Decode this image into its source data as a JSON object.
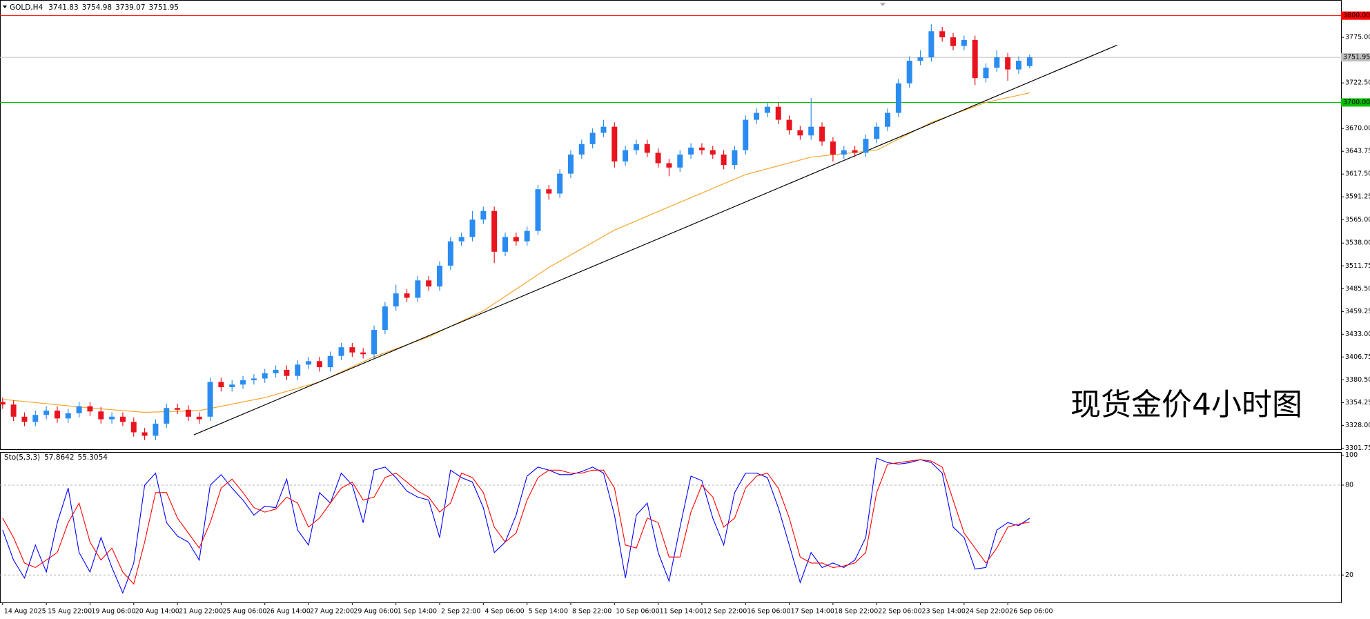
{
  "chart_data": {
    "type": "candlestick",
    "symbol": "GOLD,H4",
    "up_color": "#2a8cf0",
    "down_color": "#e8141e",
    "open": [
      3355,
      3352,
      3338,
      3332,
      3340,
      3345,
      3336,
      3342,
      3350,
      3344,
      3335,
      3338,
      3332,
      3320,
      3316,
      3330,
      3348,
      3346,
      3338,
      3338,
      3378,
      3372,
      3375,
      3380,
      3382,
      3388,
      3392,
      3385,
      3398,
      3402,
      3395,
      3408,
      3418,
      3412,
      3410,
      3438,
      3465,
      3480,
      3475,
      3495,
      3488,
      3512,
      3540,
      3545,
      3565,
      3575,
      3528,
      3545,
      3540,
      3552,
      3600,
      3595,
      3618,
      3640,
      3652,
      3665,
      3672,
      3632,
      3645,
      3652,
      3642,
      3630,
      3625,
      3640,
      3648,
      3645,
      3640,
      3628,
      3645,
      3680,
      3688,
      3695,
      3680,
      3668,
      3662,
      3672,
      3655,
      3640,
      3645,
      3642,
      3658,
      3672,
      3688,
      3722,
      3748,
      3752,
      3782,
      3775,
      3765,
      3772,
      3728,
      3740,
      3752,
      3738,
      3741.83
    ],
    "high": [
      3360,
      3357,
      3343,
      3345,
      3350,
      3350,
      3347,
      3355,
      3355,
      3349,
      3343,
      3343,
      3337,
      3325,
      3335,
      3353,
      3353,
      3351,
      3343,
      3383,
      3383,
      3380,
      3385,
      3387,
      3393,
      3397,
      3397,
      3403,
      3407,
      3407,
      3413,
      3423,
      3423,
      3417,
      3443,
      3470,
      3490,
      3485,
      3500,
      3500,
      3517,
      3545,
      3550,
      3575,
      3580,
      3580,
      3550,
      3550,
      3557,
      3605,
      3605,
      3623,
      3645,
      3657,
      3670,
      3680,
      3677,
      3650,
      3657,
      3657,
      3647,
      3635,
      3645,
      3653,
      3653,
      3650,
      3645,
      3650,
      3685,
      3693,
      3700,
      3700,
      3685,
      3673,
      3705,
      3677,
      3660,
      3650,
      3650,
      3663,
      3677,
      3693,
      3727,
      3753,
      3760,
      3790,
      3787,
      3780,
      3777,
      3777,
      3745,
      3760,
      3757,
      3753,
      3754.98
    ],
    "low": [
      3347,
      3333,
      3327,
      3327,
      3335,
      3331,
      3331,
      3337,
      3339,
      3330,
      3330,
      3327,
      3315,
      3311,
      3311,
      3325,
      3341,
      3333,
      3330,
      3333,
      3367,
      3367,
      3370,
      3375,
      3377,
      3383,
      3380,
      3380,
      3393,
      3390,
      3390,
      3403,
      3407,
      3405,
      3405,
      3433,
      3460,
      3470,
      3470,
      3483,
      3483,
      3507,
      3535,
      3540,
      3560,
      3515,
      3523,
      3535,
      3535,
      3547,
      3588,
      3590,
      3613,
      3635,
      3647,
      3660,
      3625,
      3627,
      3640,
      3637,
      3625,
      3615,
      3620,
      3635,
      3640,
      3635,
      3623,
      3623,
      3640,
      3675,
      3683,
      3675,
      3663,
      3657,
      3657,
      3650,
      3632,
      3635,
      3637,
      3637,
      3653,
      3667,
      3683,
      3717,
      3743,
      3747,
      3770,
      3760,
      3760,
      3720,
      3723,
      3735,
      3725,
      3733,
      3739.07
    ],
    "close": [
      3352,
      3338,
      3332,
      3340,
      3345,
      3336,
      3342,
      3350,
      3344,
      3335,
      3338,
      3332,
      3320,
      3316,
      3330,
      3348,
      3346,
      3338,
      3335,
      3378,
      3372,
      3375,
      3380,
      3382,
      3388,
      3392,
      3385,
      3398,
      3402,
      3395,
      3408,
      3418,
      3412,
      3410,
      3438,
      3465,
      3480,
      3475,
      3495,
      3488,
      3512,
      3540,
      3545,
      3565,
      3575,
      3528,
      3545,
      3540,
      3552,
      3600,
      3595,
      3618,
      3640,
      3652,
      3665,
      3672,
      3632,
      3645,
      3652,
      3642,
      3630,
      3625,
      3640,
      3648,
      3645,
      3640,
      3628,
      3645,
      3680,
      3688,
      3695,
      3680,
      3668,
      3662,
      3672,
      3655,
      3640,
      3645,
      3642,
      3658,
      3672,
      3688,
      3722,
      3748,
      3752,
      3782,
      3775,
      3765,
      3772,
      3728,
      3740,
      3752,
      3738,
      3748,
      3751.95
    ],
    "xlim": [
      -0.24,
      122.5
    ],
    "xticks": [
      {
        "value": 0,
        "label": "14 Aug 2025"
      },
      {
        "value": 4,
        "label": "15 Aug 22:00"
      },
      {
        "value": 8,
        "label": "19 Aug 06:00"
      },
      {
        "value": 12,
        "label": "20 Aug 14:00"
      },
      {
        "value": 16,
        "label": "21 Aug 22:00"
      },
      {
        "value": 20,
        "label": "25 Aug 06:00"
      },
      {
        "value": 24,
        "label": "26 Aug 14:00"
      },
      {
        "value": 28,
        "label": "27 Aug 22:00"
      },
      {
        "value": 32,
        "label": "29 Aug 06:00"
      },
      {
        "value": 36,
        "label": "1 Sep 14:00"
      },
      {
        "value": 40,
        "label": "2 Sep 22:00"
      },
      {
        "value": 44,
        "label": "4 Sep 06:00"
      },
      {
        "value": 48,
        "label": "5 Sep 14:00"
      },
      {
        "value": 52,
        "label": "8 Sep 22:00"
      },
      {
        "value": 56,
        "label": "10 Sep 06:00"
      },
      {
        "value": 60,
        "label": "11 Sep 14:00"
      },
      {
        "value": 64,
        "label": "12 Sep 22:00"
      },
      {
        "value": 68,
        "label": "16 Sep 06:00"
      },
      {
        "value": 72,
        "label": "17 Sep 14:00"
      },
      {
        "value": 76,
        "label": "18 Sep 22:00"
      },
      {
        "value": 80,
        "label": "22 Sep 06:00"
      },
      {
        "value": 84,
        "label": "23 Sep 14:00"
      },
      {
        "value": 88,
        "label": "24 Sep 22:00"
      },
      {
        "value": 92,
        "label": "26 Sep 06:00"
      }
    ],
    "ylim": [
      3300.5,
      3818
    ],
    "yticks": [
      {
        "value": 3775,
        "label": "3775.00"
      },
      {
        "value": 3722.5,
        "label": "3722.50"
      },
      {
        "value": 3670,
        "label": "3670.00"
      },
      {
        "value": 3643.75,
        "label": "3643.75"
      },
      {
        "value": 3617.5,
        "label": "3617.50"
      },
      {
        "value": 3591.25,
        "label": "3591.25"
      },
      {
        "value": 3565,
        "label": "3565.00"
      },
      {
        "value": 3538,
        "label": "3538.00"
      },
      {
        "value": 3511.75,
        "label": "3511.75"
      },
      {
        "value": 3485.5,
        "label": "3485.50"
      },
      {
        "value": 3459.25,
        "label": "3459.25"
      },
      {
        "value": 3433,
        "label": "3433.00"
      },
      {
        "value": 3406.75,
        "label": "3406.75"
      },
      {
        "value": 3380.5,
        "label": "3380.50"
      },
      {
        "value": 3354.25,
        "label": "3354.25"
      },
      {
        "value": 3328,
        "label": "3328.00"
      },
      {
        "value": 3301.75,
        "label": "3301.75"
      }
    ],
    "levels": [
      {
        "value": 3800,
        "label": "3800.00",
        "color": "#ff0000",
        "text_color": "#ffffff"
      },
      {
        "value": 3751.95,
        "label": "3751.95",
        "color": "#c0c0c0",
        "text_color": "#000000"
      },
      {
        "value": 3700,
        "label": "3700.00",
        "color": "#00c000",
        "text_color": "#ffffff"
      }
    ],
    "moving_average": {
      "color": "#f4a62a",
      "x": [
        0,
        8,
        13,
        18,
        24,
        29,
        34,
        39,
        44,
        50,
        56,
        62,
        68,
        74,
        80,
        85,
        90,
        94
      ],
      "values": [
        3358,
        3348,
        3343,
        3345,
        3360,
        3378,
        3407,
        3430,
        3460,
        3510,
        3553,
        3585,
        3617,
        3637,
        3645,
        3677,
        3700,
        3711
      ]
    },
    "trendline": {
      "color": "#000000",
      "x": [
        17.5,
        102
      ],
      "values": [
        3317,
        3766
      ]
    },
    "annotation": "现货金价4小时图",
    "stochastic": {
      "type": "line",
      "title": "Sto(5,3,3)",
      "ylim": [
        1.7,
        102.1
      ],
      "yticks": [
        100,
        80,
        20
      ],
      "levels": [
        80,
        20
      ],
      "series": [
        {
          "color": "#0000ff",
          "values": [
            50,
            30,
            18,
            40,
            22,
            55,
            78,
            35,
            22,
            45,
            25,
            8,
            28,
            80,
            88,
            55,
            46,
            42,
            30,
            80,
            87,
            78,
            70,
            60,
            66,
            65,
            84,
            50,
            40,
            75,
            68,
            88,
            80,
            55,
            90,
            92,
            85,
            76,
            72,
            70,
            45,
            90,
            85,
            82,
            65,
            35,
            42,
            60,
            86,
            92,
            90,
            87,
            87,
            89,
            92,
            88,
            60,
            18,
            60,
            68,
            35,
            16,
            52,
            86,
            83,
            58,
            40,
            75,
            88,
            88,
            85,
            65,
            40,
            15,
            35,
            25,
            28,
            25,
            30,
            45,
            98,
            95,
            94,
            95,
            97,
            95,
            88,
            52,
            45,
            24,
            25,
            50,
            55,
            53,
            57.8642
          ]
        },
        {
          "color": "#ff0000",
          "values": [
            58,
            45,
            28,
            25,
            30,
            35,
            55,
            68,
            42,
            30,
            38,
            22,
            14,
            42,
            75,
            75,
            58,
            48,
            38,
            55,
            78,
            84,
            75,
            65,
            62,
            64,
            72,
            68,
            52,
            58,
            68,
            78,
            82,
            70,
            72,
            85,
            88,
            82,
            76,
            72,
            62,
            68,
            88,
            85,
            75,
            52,
            42,
            48,
            70,
            85,
            90,
            90,
            88,
            88,
            90,
            90,
            78,
            40,
            38,
            58,
            55,
            32,
            32,
            62,
            80,
            72,
            52,
            58,
            78,
            86,
            88,
            78,
            58,
            32,
            28,
            28,
            25,
            26,
            28,
            35,
            75,
            94,
            95,
            96,
            97,
            96,
            92,
            70,
            48,
            38,
            28,
            38,
            52,
            54,
            55.3054
          ]
        }
      ]
    }
  }
}
